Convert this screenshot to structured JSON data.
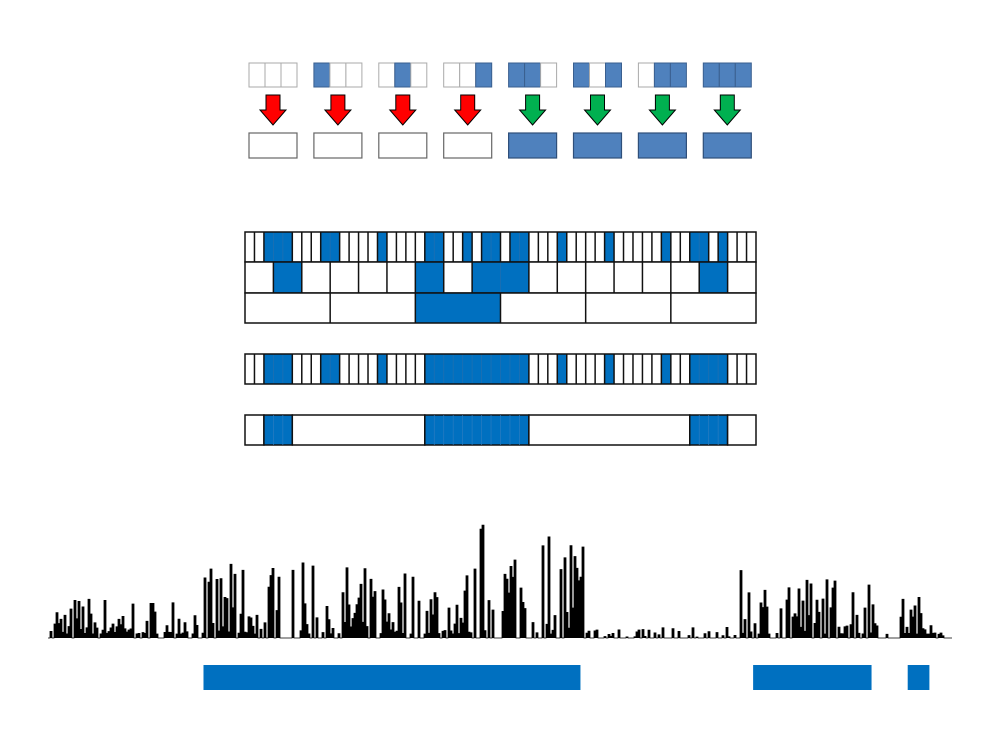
{
  "colors": {
    "top_blue": "#4f81bd",
    "grid_blue": "#0070c0",
    "bar_blue": "#0070c0",
    "arrow_fail": "#ff0000",
    "arrow_pass": "#00b050",
    "outline": "#000000"
  },
  "vote_examples": [
    {
      "inputs": [
        0,
        0,
        0
      ],
      "output": 0,
      "arrow": "red-down-arrow"
    },
    {
      "inputs": [
        1,
        0,
        0
      ],
      "output": 0,
      "arrow": "red-down-arrow"
    },
    {
      "inputs": [
        0,
        1,
        0
      ],
      "output": 0,
      "arrow": "red-down-arrow"
    },
    {
      "inputs": [
        0,
        0,
        1
      ],
      "output": 0,
      "arrow": "red-down-arrow"
    },
    {
      "inputs": [
        1,
        1,
        0
      ],
      "output": 1,
      "arrow": "green-down-arrow"
    },
    {
      "inputs": [
        1,
        0,
        1
      ],
      "output": 1,
      "arrow": "green-down-arrow"
    },
    {
      "inputs": [
        0,
        1,
        1
      ],
      "output": 1,
      "arrow": "green-down-arrow"
    },
    {
      "inputs": [
        1,
        1,
        1
      ],
      "output": 1,
      "arrow": "green-down-arrow"
    }
  ],
  "hierarchy": {
    "fine_cells": 54,
    "fine_blue": [
      2,
      3,
      4,
      8,
      9,
      14,
      19,
      20,
      23,
      25,
      26,
      28,
      29,
      33,
      38,
      44,
      47,
      48,
      50
    ],
    "mid_cells": 18,
    "mid_blue": [
      1,
      6,
      8,
      9,
      16
    ],
    "coarse_cells": 6,
    "coarse_blue": [
      2
    ]
  },
  "filled_row": {
    "cells": 54,
    "blue": [
      2,
      3,
      4,
      8,
      9,
      14,
      19,
      20,
      21,
      22,
      23,
      24,
      25,
      26,
      27,
      28,
      29,
      33,
      38,
      44,
      47,
      48,
      49,
      50
    ]
  },
  "merged_row": {
    "segments": [
      {
        "from": 0,
        "to": 1,
        "blue": 0
      },
      {
        "from": 2,
        "to": 4,
        "blue": 1
      },
      {
        "from": 5,
        "to": 18,
        "blue": 0
      },
      {
        "from": 19,
        "to": 29,
        "blue": 1
      },
      {
        "from": 30,
        "to": 46,
        "blue": 0
      },
      {
        "from": 47,
        "to": 50,
        "blue": 1
      },
      {
        "from": 51,
        "to": 53,
        "blue": 0
      }
    ]
  },
  "signal": {
    "detected_regions_fraction": [
      [
        0.172,
        0.589
      ],
      [
        0.78,
        0.911
      ],
      [
        0.951,
        0.975
      ]
    ]
  }
}
